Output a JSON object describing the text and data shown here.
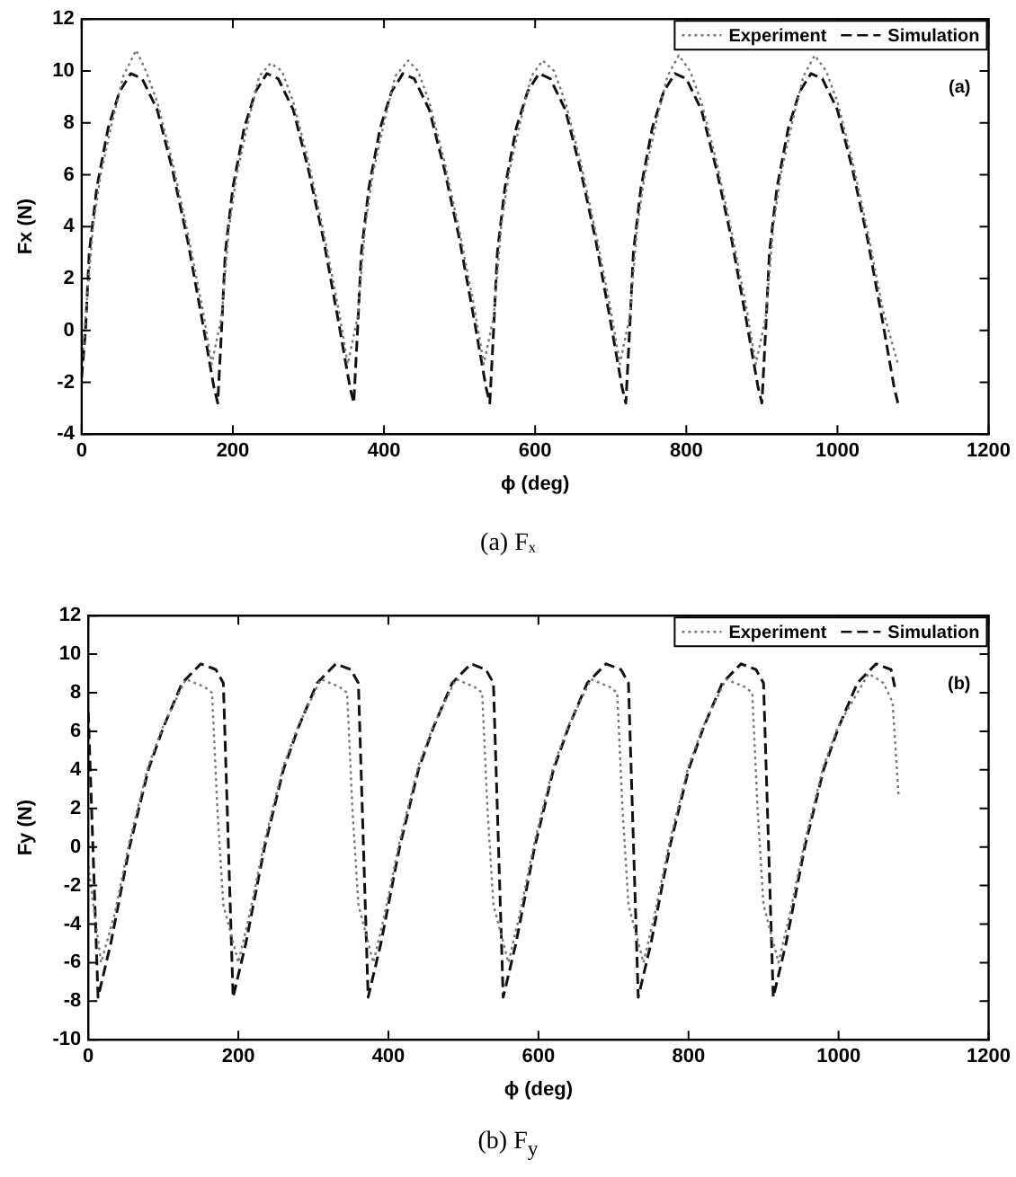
{
  "chart_data": [
    {
      "type": "line",
      "xlabel": "ϕ (deg)",
      "ylabel": "Fx (N)",
      "annotations": [
        "(a)",
        "(a)  Fₓ"
      ],
      "legend": "top right",
      "grid": false,
      "marker": "none",
      "xlim": [
        0,
        1200
      ],
      "xticks": [
        0,
        200,
        400,
        600,
        800,
        1000,
        1200
      ],
      "ylim": [
        -4,
        12
      ],
      "yticks": [
        -4,
        -2,
        0,
        2,
        4,
        6,
        8,
        10,
        12
      ],
      "series": [
        {
          "name": "Experiment",
          "color": "#777777",
          "line_style": "dotted",
          "x": [
            0,
            5,
            15,
            25,
            40,
            55,
            72,
            85,
            100,
            120,
            140,
            160,
            172,
            185,
            195,
            205,
            220,
            235,
            250,
            265,
            280,
            300,
            320,
            340,
            352,
            365,
            375,
            385,
            400,
            415,
            432,
            445,
            460,
            480,
            500,
            520,
            532,
            545,
            555,
            565,
            580,
            595,
            610,
            625,
            640,
            660,
            680,
            700,
            712,
            725,
            735,
            745,
            760,
            775,
            790,
            805,
            820,
            840,
            860,
            880,
            892,
            905,
            915,
            925,
            940,
            955,
            970,
            985,
            1000,
            1020,
            1040,
            1060,
            1080
          ],
          "values": [
            -1.5,
            0.5,
            4,
            6,
            8,
            9.8,
            10.8,
            10,
            8.8,
            6.5,
            3.8,
            0.8,
            -1.3,
            0.5,
            4,
            6,
            8,
            9.8,
            10.3,
            10,
            8.8,
            6.5,
            3.8,
            0.8,
            -1.3,
            0.5,
            4,
            6,
            8,
            9.8,
            10.4,
            10,
            8.8,
            6.5,
            3.8,
            0.8,
            -1.3,
            0.5,
            4,
            6,
            8,
            9.8,
            10.4,
            10,
            8.8,
            6.5,
            3.8,
            0.8,
            -1.3,
            0.5,
            4,
            6,
            8,
            9.8,
            10.6,
            10,
            8.8,
            6.5,
            3.8,
            0.8,
            -1.3,
            0.5,
            4,
            6,
            8,
            9.8,
            10.6,
            10,
            8.8,
            6.5,
            3.8,
            0.8,
            -1.3
          ]
        },
        {
          "name": "Simulation",
          "color": "#111111",
          "line_style": "dashed",
          "x": [
            0,
            5,
            10,
            20,
            35,
            50,
            65,
            80,
            100,
            120,
            140,
            160,
            175,
            180,
            185,
            190,
            200,
            215,
            230,
            245,
            260,
            280,
            300,
            320,
            340,
            355,
            360,
            365,
            370,
            380,
            395,
            410,
            425,
            440,
            460,
            480,
            500,
            520,
            535,
            540,
            545,
            550,
            560,
            575,
            590,
            605,
            620,
            640,
            660,
            680,
            700,
            715,
            720,
            725,
            730,
            740,
            755,
            770,
            785,
            800,
            820,
            840,
            860,
            880,
            895,
            900,
            905,
            910,
            920,
            935,
            950,
            965,
            980,
            1000,
            1020,
            1040,
            1060,
            1075,
            1080
          ],
          "values": [
            -1.8,
            0,
            3,
            5.5,
            7.8,
            9.2,
            9.9,
            9.7,
            8.5,
            6.2,
            3.5,
            0.3,
            -2.2,
            -2.8,
            0,
            3,
            5.5,
            7.8,
            9.2,
            9.9,
            9.7,
            8.5,
            6.2,
            3.5,
            0.3,
            -2.2,
            -2.8,
            0,
            3,
            5.5,
            7.8,
            9.2,
            9.9,
            9.7,
            8.5,
            6.2,
            3.5,
            0.3,
            -2.2,
            -2.8,
            0,
            3,
            5.5,
            7.8,
            9.2,
            9.9,
            9.7,
            8.5,
            6.2,
            3.5,
            0.3,
            -2.2,
            -2.8,
            0,
            3,
            5.5,
            7.8,
            9.2,
            9.9,
            9.7,
            8.5,
            6.2,
            3.5,
            0.3,
            -2.2,
            -2.8,
            0,
            3,
            5.5,
            7.8,
            9.2,
            9.9,
            9.7,
            8.5,
            6.2,
            3.5,
            0.3,
            -2.2,
            -2.8
          ]
        }
      ]
    },
    {
      "type": "line",
      "xlabel": "ϕ (deg)",
      "ylabel": "Fy (N)",
      "annotations": [
        "(b)",
        "(b)  F$_{y}$"
      ],
      "legend": "top right",
      "grid": false,
      "marker": "none",
      "xlim": [
        0,
        1200
      ],
      "xticks": [
        0,
        200,
        400,
        600,
        800,
        1000,
        1200
      ],
      "ylim": [
        -10,
        12
      ],
      "yticks": [
        -10,
        -8,
        -6,
        -4,
        -2,
        0,
        2,
        4,
        6,
        8,
        10,
        12
      ],
      "series": [
        {
          "name": "Experiment",
          "color": "#777777",
          "line_style": "dotted",
          "x": [
            0,
            17,
            35,
            55,
            80,
            100,
            130,
            155,
            165,
            172,
            180,
            200,
            215,
            235,
            260,
            280,
            310,
            335,
            345,
            352,
            360,
            380,
            395,
            415,
            440,
            460,
            490,
            515,
            525,
            532,
            540,
            560,
            575,
            595,
            620,
            640,
            670,
            695,
            705,
            712,
            720,
            740,
            755,
            775,
            800,
            820,
            850,
            875,
            885,
            892,
            900,
            920,
            935,
            955,
            980,
            1000,
            1040,
            1060,
            1072,
            1080
          ],
          "values": [
            -1,
            -6,
            -3.5,
            0.3,
            4.2,
            6.3,
            8.7,
            8.3,
            8,
            2,
            -3,
            -6,
            -3.5,
            0.3,
            4.2,
            6.3,
            8.7,
            8.3,
            8,
            2,
            -3,
            -6,
            -3.5,
            0.3,
            4.2,
            6.3,
            8.7,
            8.3,
            8,
            2,
            -3,
            -6,
            -3.5,
            0.3,
            4.2,
            6.3,
            8.7,
            8.3,
            8,
            2,
            -3,
            -6,
            -3.5,
            0.3,
            4.2,
            6.3,
            8.7,
            8.3,
            8,
            2,
            -3,
            -6,
            -3.5,
            0.3,
            4.2,
            6.3,
            9,
            8.5,
            7.5,
            2.7
          ]
        },
        {
          "name": "Simulation",
          "color": "#111111",
          "line_style": "dashed",
          "x": [
            0,
            13,
            30,
            55,
            80,
            100,
            125,
            150,
            170,
            180,
            193,
            210,
            235,
            260,
            280,
            305,
            330,
            350,
            360,
            373,
            390,
            415,
            440,
            460,
            485,
            510,
            530,
            540,
            553,
            570,
            595,
            620,
            640,
            665,
            690,
            710,
            720,
            733,
            750,
            775,
            800,
            820,
            845,
            870,
            890,
            900,
            913,
            930,
            955,
            980,
            1000,
            1025,
            1050,
            1070,
            1075
          ],
          "values": [
            7,
            -7.8,
            -5,
            0,
            4,
            6.2,
            8.5,
            9.5,
            9.2,
            8.5,
            -7.8,
            -5,
            0,
            4,
            6.2,
            8.5,
            9.5,
            9.2,
            8.5,
            -7.8,
            -5,
            0,
            4,
            6.2,
            8.5,
            9.5,
            9.2,
            8.5,
            -7.8,
            -5,
            0,
            4,
            6.2,
            8.5,
            9.5,
            9.2,
            8.5,
            -7.8,
            -5,
            0,
            4,
            6.2,
            8.5,
            9.5,
            9.2,
            8.5,
            -7.8,
            -5,
            0,
            4,
            6.2,
            8.5,
            9.5,
            9.2,
            8.3
          ]
        }
      ]
    }
  ]
}
